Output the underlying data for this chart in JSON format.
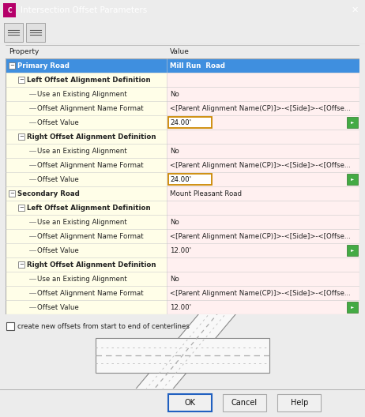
{
  "title": "Intersection Offset Parameters",
  "title_bg": "#4d4d0d",
  "title_fg": "#ffffff",
  "dialog_bg": "#ececec",
  "table_bg": "#fffee8",
  "header_bg": "#3f8fdf",
  "header_fg": "#ffffff",
  "col_split": 0.455,
  "highlight_orange": "#cc8800",
  "checkbox_label": "create new offsets from start to end of centerlines",
  "rows": [
    {
      "label": "Primary Road",
      "value": "Mill Run  Road",
      "level": 0,
      "bold": true,
      "blue_row": true,
      "has_expand": true
    },
    {
      "label": "Left Offset Alignment Definition",
      "value": "",
      "level": 1,
      "bold": true,
      "has_expand": true
    },
    {
      "label": "Use an Existing Alignment",
      "value": "No",
      "level": 2,
      "bold": false,
      "has_green": false
    },
    {
      "label": "Offset Alignment Name Format",
      "value": "<[Parent Alignment Name(CP)]>-<[Side]>-<[Offse...",
      "level": 2,
      "bold": false,
      "has_green": false
    },
    {
      "label": "Offset Value",
      "value": "24.00'",
      "level": 2,
      "bold": false,
      "highlight_value": true,
      "has_green": true
    },
    {
      "label": "Right Offset Alignment Definition",
      "value": "",
      "level": 1,
      "bold": true,
      "has_expand": true
    },
    {
      "label": "Use an Existing Alignment",
      "value": "No",
      "level": 2,
      "bold": false,
      "has_green": false
    },
    {
      "label": "Offset Alignment Name Format",
      "value": "<[Parent Alignment Name(CP)]>-<[Side]>-<[Offse...",
      "level": 2,
      "bold": false,
      "has_green": false
    },
    {
      "label": "Offset Value",
      "value": "24.00'",
      "level": 2,
      "bold": false,
      "highlight_value": true,
      "has_green": true
    },
    {
      "label": "Secondary Road",
      "value": "Mount Pleasant Road",
      "level": 0,
      "bold": true,
      "has_expand": true
    },
    {
      "label": "Left Offset Alignment Definition",
      "value": "",
      "level": 1,
      "bold": true,
      "has_expand": true
    },
    {
      "label": "Use an Existing Alignment",
      "value": "No",
      "level": 2,
      "bold": false,
      "has_green": false
    },
    {
      "label": "Offset Alignment Name Format",
      "value": "<[Parent Alignment Name(CP)]>-<[Side]>-<[Offse...",
      "level": 2,
      "bold": false,
      "has_green": false
    },
    {
      "label": "Offset Value",
      "value": "12.00'",
      "level": 2,
      "bold": false,
      "has_green": true
    },
    {
      "label": "Right Offset Alignment Definition",
      "value": "",
      "level": 1,
      "bold": true,
      "has_expand": true
    },
    {
      "label": "Use an Existing Alignment",
      "value": "No",
      "level": 2,
      "bold": false,
      "has_green": false
    },
    {
      "label": "Offset Alignment Name Format",
      "value": "<[Parent Alignment Name(CP)]>-<[Side]>-<[Offse...",
      "level": 2,
      "bold": false,
      "has_green": false
    },
    {
      "label": "Offset Value",
      "value": "12.00'",
      "level": 2,
      "bold": false,
      "has_green": true
    }
  ]
}
